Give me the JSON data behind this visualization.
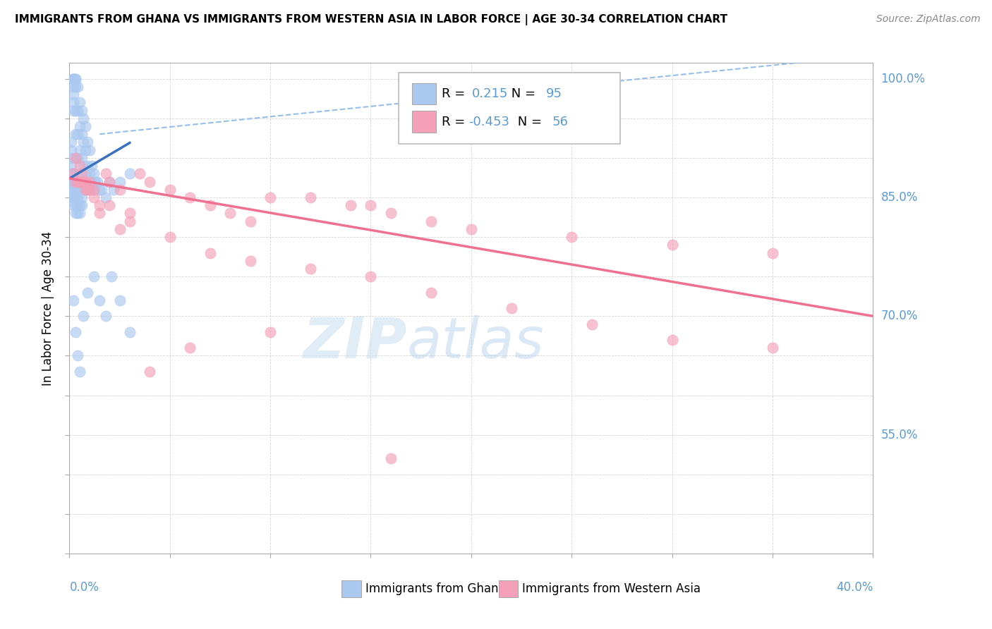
{
  "title": "IMMIGRANTS FROM GHANA VS IMMIGRANTS FROM WESTERN ASIA IN LABOR FORCE | AGE 30-34 CORRELATION CHART",
  "source": "Source: ZipAtlas.com",
  "ylabel_label": "In Labor Force | Age 30-34",
  "legend_ghana": "Immigrants from Ghana",
  "legend_western_asia": "Immigrants from Western Asia",
  "R_ghana": 0.215,
  "N_ghana": 95,
  "R_western_asia": -0.453,
  "N_western_asia": 56,
  "ghana_color": "#aac8f0",
  "western_asia_color": "#f4a0b8",
  "trendline_ghana_color": "#3a72c0",
  "trendline_western_asia_color": "#f07090",
  "dashed_line_color": "#8ab8e8",
  "right_label_color": "#5b9bd5",
  "xmin": 0.0,
  "xmax": 0.4,
  "ymin": 0.4,
  "ymax": 1.02,
  "right_yticks": [
    1.0,
    0.85,
    0.7,
    0.55
  ],
  "right_ylabels": [
    "100.0%",
    "85.0%",
    "70.0%",
    "55.0%"
  ],
  "ghana_x": [
    0.001,
    0.001,
    0.001,
    0.001,
    0.001,
    0.001,
    0.001,
    0.001,
    0.002,
    0.002,
    0.002,
    0.002,
    0.002,
    0.002,
    0.002,
    0.002,
    0.002,
    0.002,
    0.002,
    0.002,
    0.002,
    0.003,
    0.003,
    0.003,
    0.003,
    0.003,
    0.003,
    0.003,
    0.003,
    0.003,
    0.003,
    0.003,
    0.004,
    0.004,
    0.004,
    0.004,
    0.004,
    0.004,
    0.004,
    0.004,
    0.004,
    0.005,
    0.005,
    0.005,
    0.005,
    0.005,
    0.005,
    0.005,
    0.006,
    0.006,
    0.006,
    0.006,
    0.006,
    0.006,
    0.007,
    0.007,
    0.007,
    0.007,
    0.007,
    0.008,
    0.008,
    0.008,
    0.008,
    0.008,
    0.009,
    0.009,
    0.009,
    0.01,
    0.01,
    0.01,
    0.011,
    0.011,
    0.012,
    0.012,
    0.013,
    0.014,
    0.015,
    0.016,
    0.018,
    0.02,
    0.022,
    0.025,
    0.03,
    0.002,
    0.003,
    0.004,
    0.005,
    0.007,
    0.009,
    0.012,
    0.015,
    0.018,
    0.021,
    0.025,
    0.03
  ],
  "ghana_y": [
    0.88,
    0.89,
    0.9,
    0.91,
    0.92,
    0.87,
    0.86,
    0.85,
    1.0,
    1.0,
    1.0,
    1.0,
    0.99,
    0.98,
    0.97,
    0.96,
    0.88,
    0.87,
    0.86,
    0.85,
    0.84,
    1.0,
    1.0,
    0.99,
    0.96,
    0.93,
    0.9,
    0.87,
    0.86,
    0.85,
    0.84,
    0.83,
    0.99,
    0.96,
    0.93,
    0.9,
    0.87,
    0.86,
    0.85,
    0.84,
    0.83,
    0.97,
    0.94,
    0.91,
    0.88,
    0.86,
    0.84,
    0.83,
    0.96,
    0.93,
    0.9,
    0.87,
    0.85,
    0.84,
    0.95,
    0.92,
    0.89,
    0.87,
    0.86,
    0.94,
    0.91,
    0.88,
    0.87,
    0.86,
    0.92,
    0.89,
    0.87,
    0.91,
    0.88,
    0.86,
    0.89,
    0.87,
    0.88,
    0.86,
    0.87,
    0.87,
    0.86,
    0.86,
    0.85,
    0.87,
    0.86,
    0.87,
    0.88,
    0.72,
    0.68,
    0.65,
    0.63,
    0.7,
    0.73,
    0.75,
    0.72,
    0.7,
    0.75,
    0.72,
    0.68
  ],
  "western_asia_x": [
    0.002,
    0.003,
    0.004,
    0.005,
    0.006,
    0.007,
    0.008,
    0.009,
    0.01,
    0.012,
    0.015,
    0.018,
    0.02,
    0.025,
    0.03,
    0.035,
    0.04,
    0.05,
    0.06,
    0.07,
    0.08,
    0.09,
    0.1,
    0.12,
    0.14,
    0.15,
    0.16,
    0.18,
    0.2,
    0.25,
    0.3,
    0.35,
    0.003,
    0.005,
    0.008,
    0.012,
    0.02,
    0.03,
    0.05,
    0.07,
    0.09,
    0.12,
    0.15,
    0.18,
    0.22,
    0.26,
    0.3,
    0.35,
    0.006,
    0.01,
    0.015,
    0.025,
    0.04,
    0.06,
    0.1,
    0.16
  ],
  "western_asia_y": [
    0.88,
    0.87,
    0.87,
    0.87,
    0.87,
    0.87,
    0.86,
    0.86,
    0.86,
    0.85,
    0.84,
    0.88,
    0.87,
    0.86,
    0.83,
    0.88,
    0.87,
    0.86,
    0.85,
    0.84,
    0.83,
    0.82,
    0.85,
    0.85,
    0.84,
    0.84,
    0.83,
    0.82,
    0.81,
    0.8,
    0.79,
    0.78,
    0.9,
    0.89,
    0.87,
    0.86,
    0.84,
    0.82,
    0.8,
    0.78,
    0.77,
    0.76,
    0.75,
    0.73,
    0.71,
    0.69,
    0.67,
    0.66,
    0.88,
    0.87,
    0.83,
    0.81,
    0.63,
    0.66,
    0.68,
    0.52
  ]
}
